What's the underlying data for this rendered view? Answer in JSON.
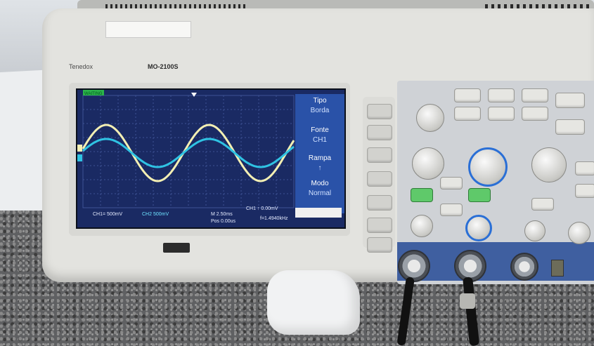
{
  "scene": {
    "device": "oscilloscope"
  },
  "scope_panel": {
    "brand": "Tenedox",
    "model": "MO-2100S"
  },
  "screen": {
    "top_status": "WAITING",
    "menu": [
      {
        "label": "Tipo",
        "value": "Borda"
      },
      {
        "label": "Fonte",
        "value": "CH1"
      },
      {
        "label": "Rampa",
        "value": "↑"
      },
      {
        "label": "Modo",
        "value": "Normal"
      }
    ],
    "bottom_status": {
      "ch1": "CH1= 500mV",
      "ch2": "CH2 500mV",
      "time": "M 2.50ms",
      "trigger_pos": "Pos 0.00us",
      "freq": "f=1.4940kHz",
      "trig_level": "CH1 ↑ 0.00mV"
    }
  },
  "colors": {
    "screen_bg": "#1a2a63",
    "grid": "#3e5395",
    "ch1_trace": "#f3efb3",
    "ch2_trace": "#2fc3e3",
    "menu_bg": "#2a52a8"
  }
}
